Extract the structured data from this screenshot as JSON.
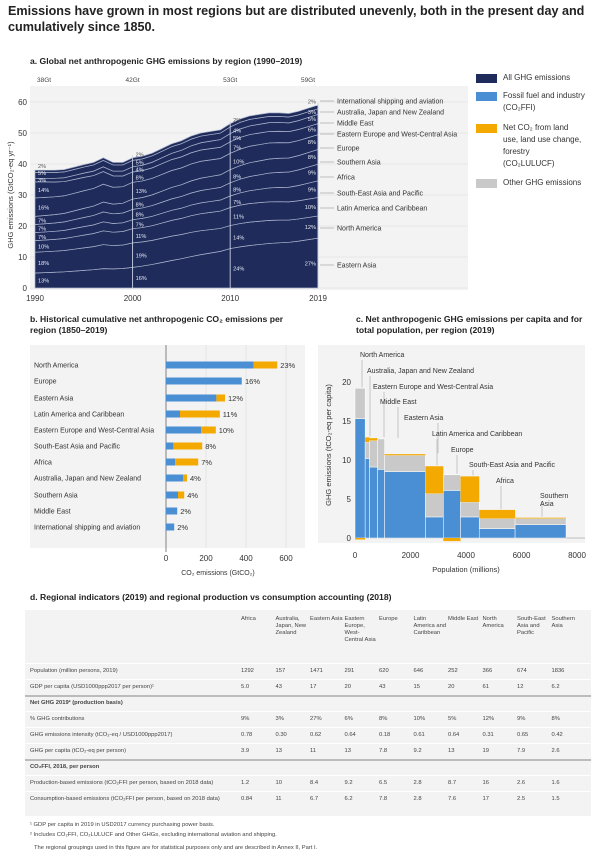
{
  "title": "Emissions have grown in most regions but are distributed unevenly, both in the present day and cumulatively since 1850.",
  "colors": {
    "all_ghg": "#1f2b5b",
    "fossil": "#4a8fd4",
    "lulucf": "#f4a900",
    "other": "#c9c9c9",
    "panel_bg": "#f3f3f3"
  },
  "legend": [
    {
      "key": "all_ghg",
      "label": "All GHG emissions"
    },
    {
      "key": "fossil",
      "label": "Fossil fuel and industry (CO₂FFI)"
    },
    {
      "key": "lulucf",
      "label": "Net CO₂ from land use, land use change, forestry (CO₂LULUCF)"
    },
    {
      "key": "other",
      "label": "Other GHG emissions"
    }
  ],
  "chart_data": [
    {
      "type": "area",
      "title": "a. Global net anthropogenic GHG emissions by region (1990–2019)",
      "ylabel": "GHG emissions (GtCO₂-eq yr⁻¹)",
      "ylim": [
        0,
        60
      ],
      "yticks": [
        0,
        10,
        20,
        30,
        40,
        50,
        60
      ],
      "xticks": [
        1990,
        2000,
        2010,
        2019
      ],
      "total_labels": [
        "38Gt",
        "42Gt",
        "53Gt",
        "59Gt"
      ],
      "years": [
        1990,
        1991,
        1992,
        1993,
        1994,
        1995,
        1996,
        1997,
        1998,
        1999,
        2000,
        2001,
        2002,
        2003,
        2004,
        2005,
        2006,
        2007,
        2008,
        2009,
        2010,
        2011,
        2012,
        2013,
        2014,
        2015,
        2016,
        2017,
        2018,
        2019
      ],
      "total": [
        38,
        38,
        38,
        38.2,
        39,
        39.8,
        40.5,
        42,
        40.5,
        40.5,
        42,
        42.5,
        43.5,
        45,
        46.5,
        47.5,
        49,
        50,
        50.5,
        51,
        53,
        54.5,
        55.5,
        56,
        56.5,
        56.5,
        56.3,
        57,
        58,
        59
      ],
      "share_years": [
        1990,
        2000,
        2010,
        2019
      ],
      "regions": [
        {
          "name": "Eastern Asia",
          "shares": [
            13,
            16,
            24,
            27
          ]
        },
        {
          "name": "North America",
          "shares": [
            18,
            19,
            14,
            12
          ]
        },
        {
          "name": "Latin America and Caribbean",
          "shares": [
            10,
            11,
            11,
            10
          ]
        },
        {
          "name": "South-East Asia and Pacific",
          "shares": [
            7,
            7,
            7,
            9
          ]
        },
        {
          "name": "Africa",
          "shares": [
            7,
            8,
            8,
            9
          ]
        },
        {
          "name": "Southern Asia",
          "shares": [
            7,
            8,
            8,
            8
          ]
        },
        {
          "name": "Europe",
          "shares": [
            16,
            13,
            10,
            8
          ]
        },
        {
          "name": "Eastern Europe and West-Central Asia",
          "shares": [
            14,
            8,
            7,
            6
          ]
        },
        {
          "name": "Middle East",
          "shares": [
            3,
            4,
            5,
            5
          ]
        },
        {
          "name": "Australia, Japan and New Zealand",
          "shares": [
            5,
            5,
            4,
            3
          ]
        },
        {
          "name": "International shipping and aviation",
          "shares": [
            2,
            2,
            2,
            2
          ]
        }
      ]
    },
    {
      "type": "bar",
      "orientation": "horizontal",
      "stacked": true,
      "title": "b. Historical cumulative net anthropogenic CO₂ emissions per region (1850–2019)",
      "xlabel": "CO₂ emissions (GtCO₂)",
      "xlim": [
        0,
        700
      ],
      "xticks": [
        0,
        200,
        400,
        600
      ],
      "categories": [
        "North America",
        "Europe",
        "Eastern Asia",
        "Latin America and Caribbean",
        "Eastern Europe and West-Central Asia",
        "South-East Asia and Pacific",
        "Africa",
        "Australia, Japan and New Zealand",
        "Southern Asia",
        "Middle East",
        "International shipping and aviation"
      ],
      "series": [
        {
          "key": "fossil",
          "values": [
            438,
            378,
            252,
            70,
            176,
            37,
            46,
            85,
            60,
            56,
            41
          ]
        },
        {
          "key": "lulucf",
          "values": [
            118,
            2,
            43,
            199,
            73,
            144,
            115,
            20,
            31,
            0,
            0
          ]
        }
      ],
      "labels": [
        "23%",
        "16%",
        "12%",
        "11%",
        "10%",
        "8%",
        "7%",
        "4%",
        "4%",
        "2%",
        "2%"
      ]
    },
    {
      "type": "bar",
      "variable_width": true,
      "title": "c. Net anthropogenic GHG emissions per capita and for total population, per region (2019)",
      "ylabel": "GHG emissions (tCO₂-eq per capita)",
      "xlabel": "Population (millions)",
      "ylim": [
        -1,
        23
      ],
      "yticks": [
        0,
        5,
        10,
        15,
        20
      ],
      "xlim": [
        0,
        8300
      ],
      "xticks": [
        0,
        2000,
        4000,
        6000,
        8000
      ],
      "regions": [
        {
          "name": "North America",
          "population": 366,
          "fossil": 15.3,
          "other": 3.9,
          "lulucf": -0.2
        },
        {
          "name": "Australia, Japan and New Zealand",
          "population": 157,
          "fossil": 10.2,
          "other": 2.1,
          "lulucf": 0.6
        },
        {
          "name": "Eastern Europe and West-Central Asia",
          "population": 291,
          "fossil": 9.1,
          "other": 3.4,
          "lulucf": 0.3
        },
        {
          "name": "Middle East",
          "population": 252,
          "fossil": 8.8,
          "other": 3.9,
          "lulucf": 0
        },
        {
          "name": "Eastern Asia",
          "population": 1471,
          "fossil": 8.5,
          "other": 2.1,
          "lulucf": 0.15
        },
        {
          "name": "Latin America and Caribbean",
          "population": 646,
          "fossil": 2.7,
          "other": 3.0,
          "lulucf": 3.5
        },
        {
          "name": "Europe",
          "population": 620,
          "fossil": 6.1,
          "other": 2.0,
          "lulucf": -0.4
        },
        {
          "name": "South-East Asia and Pacific",
          "population": 674,
          "fossil": 2.7,
          "other": 1.9,
          "lulucf": 3.3
        },
        {
          "name": "Africa",
          "population": 1292,
          "fossil": 1.2,
          "other": 1.3,
          "lulucf": 1.1
        },
        {
          "name": "Southern Asia",
          "population": 1836,
          "fossil": 1.7,
          "other": 0.8,
          "lulucf": 0.1
        }
      ]
    }
  ],
  "table": {
    "title": "d. Regional indicators (2019) and regional production vs consumption accounting (2018)",
    "columns": [
      "Africa",
      "Australia, Japan, New Zealand",
      "Eastern Asia",
      "Eastern Europe, West-Central Asia",
      "Europe",
      "Latin America and Caribbean",
      "Middle East",
      "North America",
      "South-East Asia and Pacific",
      "Southern Asia"
    ],
    "rows": [
      {
        "label": "Population (million persons, 2019)",
        "values": [
          "1292",
          "157",
          "1471",
          "291",
          "620",
          "646",
          "252",
          "366",
          "674",
          "1836"
        ]
      },
      {
        "label": "GDP per capita (USD1000ppp2017 per person)¹",
        "values": [
          "5.0",
          "43",
          "17",
          "20",
          "43",
          "15",
          "20",
          "61",
          "12",
          "6.2"
        ]
      },
      {
        "label": "Net GHG 2019² (production basis)",
        "section": true
      },
      {
        "label": "% GHG contributions",
        "values": [
          "9%",
          "3%",
          "27%",
          "6%",
          "8%",
          "10%",
          "5%",
          "12%",
          "9%",
          "8%"
        ]
      },
      {
        "label": "GHG emissions intensity (tCO₂-eq / USD1000ppp2017)",
        "values": [
          "0.78",
          "0.30",
          "0.62",
          "0.64",
          "0.18",
          "0.61",
          "0.64",
          "0.31",
          "0.65",
          "0.42"
        ]
      },
      {
        "label": "GHG per capita (tCO₂-eq per person)",
        "values": [
          "3.9",
          "13",
          "11",
          "13",
          "7.8",
          "9.2",
          "13",
          "19",
          "7.9",
          "2.6"
        ]
      },
      {
        "label": "CO₂FFI, 2018, per person",
        "section": true
      },
      {
        "label": "Production-based emissions (tCO₂FFI per person, based on 2018 data)",
        "values": [
          "1.2",
          "10",
          "8.4",
          "9.2",
          "6.5",
          "2.8",
          "8.7",
          "16",
          "2.6",
          "1.6"
        ]
      },
      {
        "label": "Consumption-based emissions (tCO₂FFI per person, based on 2018 data)",
        "values": [
          "0.84",
          "11",
          "6.7",
          "6.2",
          "7.8",
          "2.8",
          "7.6",
          "17",
          "2.5",
          "1.5"
        ]
      }
    ],
    "footnotes": [
      "¹ GDP per capita in 2019 in USD2017 currency purchasing power basis.",
      "² Includes CO₂FFI, CO₂LULUCF and Other GHGs, excluding international aviation and shipping.",
      "The regional groupings used in this figure are for statistical purposes only and are described in Annex II, Part I."
    ]
  }
}
